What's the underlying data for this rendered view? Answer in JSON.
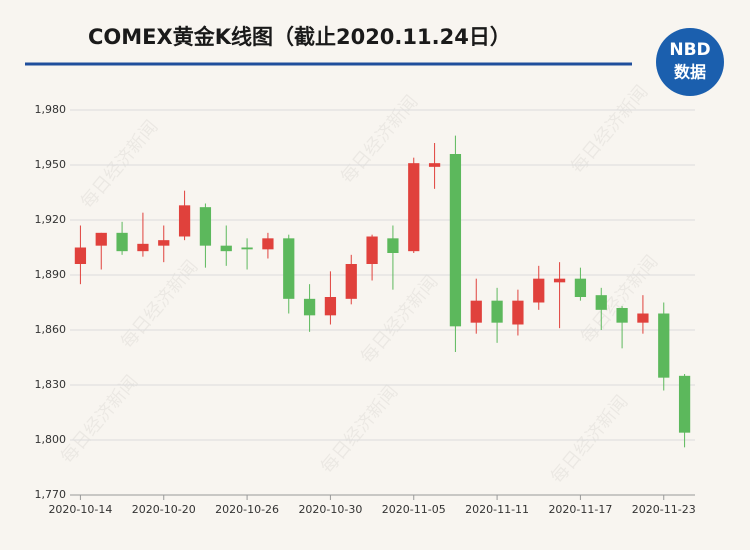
{
  "title": "COMEX黄金K线图（截止2020.11.24日）",
  "logo": {
    "line1": "NBD",
    "line2": "数据"
  },
  "watermark": "每日经济新闻",
  "chart_data": {
    "type": "candlestick",
    "categories": [
      "2020-10-14",
      null,
      null,
      null,
      "2020-10-20",
      null,
      null,
      null,
      "2020-10-26",
      null,
      null,
      null,
      "2020-10-30",
      null,
      null,
      null,
      "2020-11-05",
      null,
      null,
      null,
      "2020-11-11",
      null,
      null,
      null,
      "2020-11-17",
      null,
      null,
      null,
      "2020-11-23",
      null
    ],
    "open": [
      1896,
      1906,
      1913,
      1903,
      1906,
      1911,
      1927,
      1906,
      1905,
      1904,
      1910,
      1877,
      1868,
      1877,
      1896,
      1910,
      1903,
      1949,
      1956,
      1864,
      1876,
      1863,
      1875,
      1886,
      1888,
      1879,
      1872,
      1864,
      1869,
      1835
    ],
    "high": [
      1917,
      1913,
      1919,
      1924,
      1917,
      1936,
      1929,
      1917,
      1910,
      1913,
      1912,
      1885,
      1892,
      1901,
      1912,
      1917,
      1954,
      1962,
      1966,
      1888,
      1883,
      1882,
      1895,
      1897,
      1894,
      1883,
      1873,
      1879,
      1875,
      1836
    ],
    "low": [
      1885,
      1893,
      1901,
      1900,
      1897,
      1909,
      1894,
      1895,
      1893,
      1899,
      1869,
      1859,
      1863,
      1874,
      1887,
      1882,
      1902,
      1937,
      1848,
      1858,
      1853,
      1857,
      1871,
      1861,
      1876,
      1860,
      1850,
      1858,
      1827,
      1796
    ],
    "close": [
      1905,
      1913,
      1903,
      1907,
      1909,
      1928,
      1906,
      1903,
      1904,
      1910,
      1877,
      1868,
      1878,
      1896,
      1911,
      1902,
      1951,
      1951,
      1862,
      1876,
      1864,
      1876,
      1888,
      1888,
      1878,
      1871,
      1864,
      1869,
      1834,
      1804
    ],
    "up_color": "#e0413c",
    "down_color": "#5cb85c",
    "ylim": [
      1770,
      1980
    ],
    "yticks": [
      {
        "value": 1770,
        "label": "1,770"
      },
      {
        "value": 1800,
        "label": "1,800"
      },
      {
        "value": 1830,
        "label": "1,830"
      },
      {
        "value": 1860,
        "label": "1,860"
      },
      {
        "value": 1890,
        "label": "1,890"
      },
      {
        "value": 1920,
        "label": "1,920"
      },
      {
        "value": 1950,
        "label": "1,950"
      },
      {
        "value": 1980,
        "label": "1,980"
      }
    ],
    "grid": true
  }
}
